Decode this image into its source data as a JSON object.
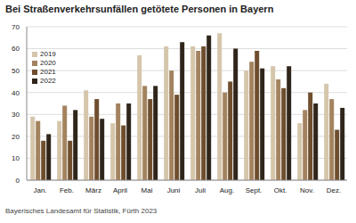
{
  "chart_data": {
    "type": "bar",
    "title": "Bei Straßenverkehrsunfällen getötete Personen in Bayern",
    "source": "Bayerisches Landesamt für Statistik, Fürth 2023",
    "categories": [
      "Jan.",
      "Feb.",
      "März",
      "April",
      "Mai",
      "Juni",
      "Juli",
      "Aug.",
      "Sept.",
      "Okt.",
      "Nov.",
      "Dez."
    ],
    "series": [
      {
        "name": "2019",
        "color": "#d5c6ab",
        "values": [
          29,
          27,
          41,
          26,
          57,
          61,
          61,
          67,
          50,
          52,
          26,
          44
        ]
      },
      {
        "name": "2020",
        "color": "#a3835f",
        "values": [
          27,
          34,
          29,
          35,
          43,
          50,
          59,
          40,
          54,
          46,
          32,
          37
        ]
      },
      {
        "name": "2021",
        "color": "#6e4e2e",
        "values": [
          18,
          18,
          37,
          25,
          37,
          39,
          61,
          45,
          59,
          42,
          40,
          23
        ]
      },
      {
        "name": "2022",
        "color": "#2f251a",
        "values": [
          21,
          32,
          28,
          35,
          43,
          63,
          66,
          60,
          51,
          52,
          35,
          33
        ]
      }
    ],
    "ylim": [
      0,
      70
    ],
    "yticks": [
      0,
      10,
      20,
      30,
      40,
      50,
      60,
      70
    ],
    "grid": true,
    "legend": "upper left"
  }
}
